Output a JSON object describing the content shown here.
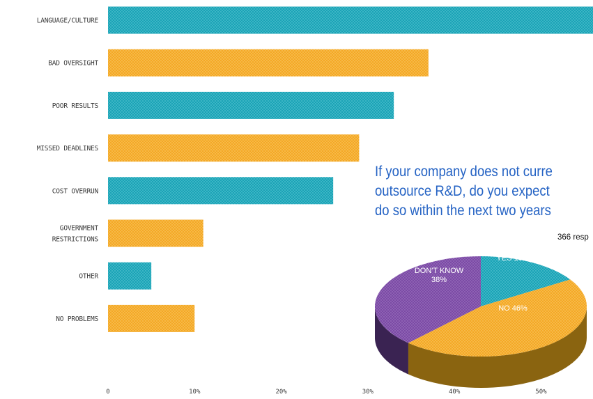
{
  "chart_data": [
    {
      "type": "bar",
      "orientation": "horizontal",
      "categories": [
        "LANGUAGE/CULTURE",
        "BAD OVERSIGHT",
        "POOR RESULTS",
        "MISSED DEADLINES",
        "COST OVERRUN",
        "GOVERNMENT RESTRICTIONS",
        "OTHER",
        "NO PROBLEMS"
      ],
      "category_lines": [
        [
          "LANGUAGE/CULTURE"
        ],
        [
          "BAD OVERSIGHT"
        ],
        [
          "POOR RESULTS"
        ],
        [
          "MISSED DEADLINES"
        ],
        [
          "COST OVERRUN"
        ],
        [
          "GOVERNMENT",
          "RESTRICTIONS"
        ],
        [
          "OTHER"
        ],
        [
          "NO PROBLEMS"
        ]
      ],
      "values": [
        56,
        37,
        33,
        29,
        26,
        11,
        5,
        10
      ],
      "bar_colors": [
        "#1aa3b6",
        "#f4a825",
        "#1aa3b6",
        "#f4a825",
        "#1aa3b6",
        "#f4a825",
        "#1aa3b6",
        "#f4a825"
      ],
      "xlim": [
        0,
        56
      ],
      "xticks": [
        0,
        10,
        20,
        30,
        40,
        50
      ],
      "xtick_labels": [
        "0",
        "10%",
        "20%",
        "30%",
        "40%",
        "50%"
      ],
      "grid": false
    },
    {
      "type": "pie",
      "title_lines": [
        "If your company does not curre",
        "outsource R&D, do you expect",
        "do so within the next two years"
      ],
      "subtitle": "366 resp",
      "slices": [
        {
          "label": "YES 16%",
          "value": 16,
          "color": "#1aa3b6",
          "side_color": "#0e6e7c"
        },
        {
          "label": "NO 46%",
          "value": 46,
          "color": "#f4a825",
          "side_color": "#8a6410"
        },
        {
          "label": "DON'T KNOW\n38%",
          "value": 38,
          "color": "#7b4aa5",
          "side_color": "#3a2352"
        }
      ],
      "style": "3d"
    }
  ]
}
